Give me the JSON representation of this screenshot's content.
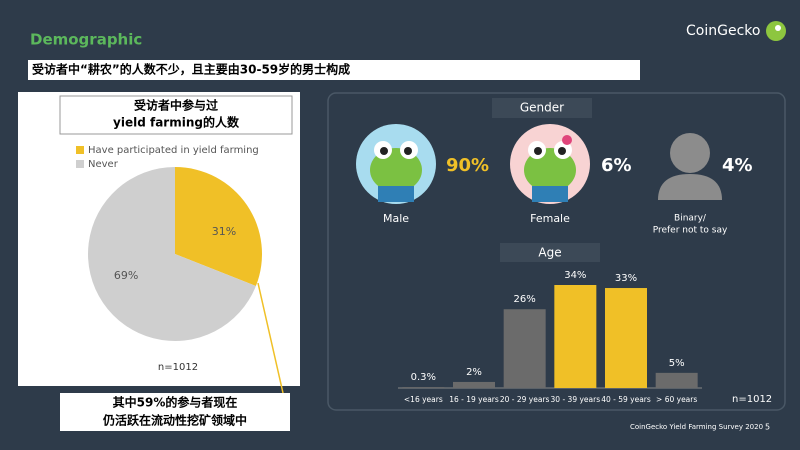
{
  "header": {
    "title": "Demographic",
    "subtitle": "受访者中“耕农”的人数不少，且主要由30-59岁的男士构成",
    "brand": "CoinGecko"
  },
  "footer": {
    "source": "CoinGecko Yield Farming Survey 2020",
    "page": "5"
  },
  "pie_title": [
    "受访者中参与过",
    "yield farming的人数"
  ],
  "callout": [
    "其中59%的参与者现在",
    "仍活跃在流动性挖矿领域中"
  ],
  "gender": {
    "title": "Gender",
    "items": [
      {
        "label": "Male",
        "value": "90%"
      },
      {
        "label": "Female",
        "value": "6%"
      },
      {
        "label": "Binary/",
        "label2": "Prefer not to say",
        "value": "4%"
      }
    ]
  },
  "chart_data": [
    {
      "type": "pie",
      "categories": [
        "Have participated in yield farming",
        "Never"
      ],
      "values": [
        31,
        69
      ],
      "value_labels": [
        "31%",
        "69%"
      ],
      "colors": [
        "#f0c027",
        "#cfcfcf"
      ],
      "note": "n=1012"
    },
    {
      "type": "bar",
      "title": "Age",
      "categories": [
        "<16 years",
        "16 - 19 years",
        "20 - 29 years",
        "30 - 39 years",
        "40 - 59 years",
        "> 60  years"
      ],
      "values": [
        0.3,
        2,
        26,
        34,
        33,
        5
      ],
      "value_labels": [
        "0.3%",
        "2%",
        "26%",
        "34%",
        "33%",
        "5%"
      ],
      "colors": [
        "#6b6b6b",
        "#6b6b6b",
        "#6b6b6b",
        "#f0c027",
        "#f0c027",
        "#6b6b6b"
      ],
      "note": "n=1012"
    }
  ]
}
